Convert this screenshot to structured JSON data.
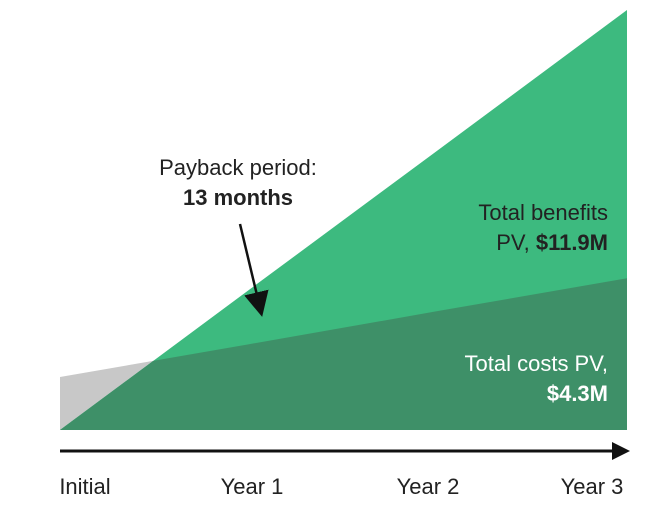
{
  "chart_data": {
    "type": "area",
    "categories": [
      "Initial",
      "Year 1",
      "Year 2",
      "Year 3"
    ],
    "series": [
      {
        "name": "Total costs PV,",
        "color": "#c8c8c8",
        "overlap_color": "#3e9068",
        "values": [
          1.5,
          2.43,
          3.37,
          4.3
        ],
        "value_labels": [
          null,
          null,
          null,
          "$4.3M"
        ]
      },
      {
        "name": "Total benefits PV,",
        "color": "#3dba7f",
        "values": [
          0,
          3.97,
          7.93,
          11.9
        ],
        "value_labels": [
          null,
          null,
          null,
          "$11.9M"
        ]
      }
    ],
    "annotation": {
      "text": "Payback period:",
      "value_text": "13 months"
    }
  }
}
